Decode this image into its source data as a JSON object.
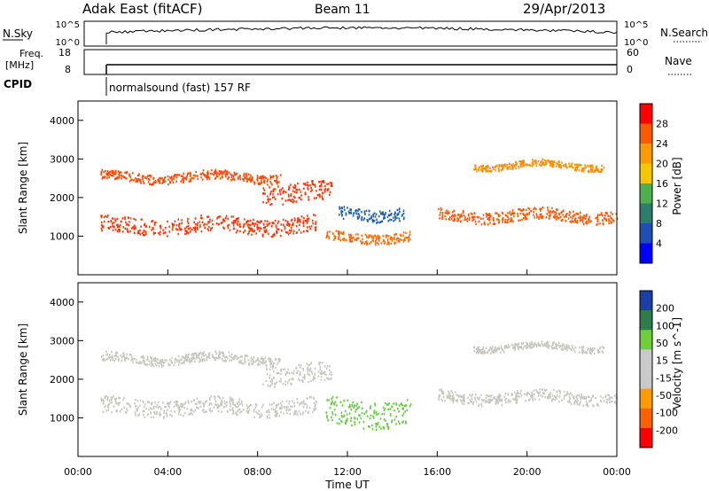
{
  "header": {
    "station": "Adak East (fitACF)",
    "beam": "Beam 11",
    "date": "29/Apr/2013"
  },
  "noise_panel": {
    "left_label": "N.Sky",
    "right_label": "N.Search",
    "left_ticks": [
      "10^5",
      "10^0"
    ],
    "right_ticks": [
      "10^5",
      "10^0"
    ]
  },
  "freq_panel": {
    "left_label_1": "Freq.",
    "left_label_2": "[MHz]",
    "right_label": "Nave",
    "left_ticks": [
      "18",
      "8"
    ],
    "right_ticks": [
      "60",
      "0"
    ]
  },
  "cpid": {
    "label": "CPID",
    "program": "normalsound (fast) 157 RF"
  },
  "chart_data": [
    {
      "type": "heatmap",
      "title": "",
      "ylabel": "Slant Range [km]",
      "xlabel": "",
      "ylim": [
        0,
        4500
      ],
      "yticks": [
        "1000",
        "2000",
        "3000",
        "4000"
      ],
      "colorbar_label": "Power [dB]",
      "colorbar_ticks": [
        "28",
        "24",
        "20",
        "16",
        "12",
        "8",
        "4"
      ],
      "colorbar_colors": [
        "#ff0000",
        "#ff5a00",
        "#ff9a00",
        "#f4c800",
        "#4caf50",
        "#2e7d6a",
        "#1f4fb0",
        "#0000ff"
      ],
      "bands": [
        {
          "t_start": 1.0,
          "t_end": 10.6,
          "range_center": 1300,
          "range_width": 420,
          "color": "#ff3300"
        },
        {
          "t_start": 1.0,
          "t_end": 9.0,
          "range_center": 2550,
          "range_width": 240,
          "color": "#ff4a00"
        },
        {
          "t_start": 8.2,
          "t_end": 11.3,
          "range_center": 2150,
          "range_width": 500,
          "color": "#ff3000"
        },
        {
          "t_start": 11.0,
          "t_end": 14.8,
          "range_center": 1000,
          "range_width": 260,
          "color": "#ff6a00"
        },
        {
          "t_start": 11.6,
          "t_end": 14.5,
          "range_center": 1600,
          "range_width": 320,
          "color": "#1f5fa8"
        },
        {
          "t_start": 16.0,
          "t_end": 24.0,
          "range_center": 1550,
          "range_width": 300,
          "color": "#ff5500"
        },
        {
          "t_start": 17.6,
          "t_end": 23.4,
          "range_center": 2850,
          "range_width": 170,
          "color": "#ff8c00"
        }
      ]
    },
    {
      "type": "heatmap",
      "title": "",
      "ylabel": "Slant Range [km]",
      "xlabel": "Time UT",
      "ylim": [
        0,
        4500
      ],
      "yticks": [
        "1000",
        "2000",
        "3000",
        "4000"
      ],
      "xticks": [
        "00:00",
        "04:00",
        "08:00",
        "12:00",
        "16:00",
        "20:00",
        "00:00"
      ],
      "xlim_hours": [
        0,
        24
      ],
      "colorbar_label": "Velocity [m s^-1]",
      "colorbar_ticks": [
        "200",
        "100",
        "50",
        "15",
        "-15",
        "-50",
        "-100",
        "-200"
      ],
      "colorbar_colors": [
        "#1a3fa8",
        "#2f7d4a",
        "#6fcf3a",
        "#c9c9c9",
        "#c9c9c9",
        "#ff9a00",
        "#ff6000",
        "#ff0000"
      ],
      "bands": [
        {
          "t_start": 1.0,
          "t_end": 10.6,
          "range_center": 1300,
          "range_width": 420,
          "color": "#c7c7c0"
        },
        {
          "t_start": 1.0,
          "t_end": 9.0,
          "range_center": 2550,
          "range_width": 240,
          "color": "#c7c7c0"
        },
        {
          "t_start": 8.2,
          "t_end": 11.3,
          "range_center": 2150,
          "range_width": 500,
          "color": "#c7c7c0"
        },
        {
          "t_start": 11.0,
          "t_end": 14.8,
          "range_center": 1150,
          "range_width": 700,
          "color": "#62c93a"
        },
        {
          "t_start": 16.0,
          "t_end": 24.0,
          "range_center": 1550,
          "range_width": 300,
          "color": "#c7c7c0"
        },
        {
          "t_start": 17.6,
          "t_end": 23.4,
          "range_center": 2850,
          "range_width": 170,
          "color": "#c7c7c0"
        }
      ]
    }
  ]
}
